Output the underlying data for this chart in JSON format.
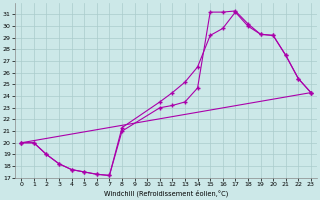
{
  "xlabel": "Windchill (Refroidissement éolien,°C)",
  "bg_color": "#cce8e8",
  "grid_color": "#aacccc",
  "line_color": "#aa00aa",
  "xlim": [
    -0.5,
    23.5
  ],
  "ylim": [
    17,
    32
  ],
  "yticks": [
    17,
    18,
    19,
    20,
    21,
    22,
    23,
    24,
    25,
    26,
    27,
    28,
    29,
    30,
    31
  ],
  "xticks": [
    0,
    1,
    2,
    3,
    4,
    5,
    6,
    7,
    8,
    9,
    10,
    11,
    12,
    13,
    14,
    15,
    16,
    17,
    18,
    19,
    20,
    21,
    22,
    23
  ],
  "series1_x": [
    0,
    1,
    2,
    3,
    4,
    5,
    6,
    7,
    8,
    11,
    12,
    13,
    14,
    15,
    16,
    17,
    18,
    19,
    20,
    21,
    22,
    23
  ],
  "series1_y": [
    20,
    20,
    19,
    18.2,
    17.7,
    17.5,
    17.3,
    17.2,
    21,
    23,
    23.2,
    23.5,
    24.7,
    31.2,
    31.2,
    31.3,
    30.2,
    29.3,
    29.2,
    27.5,
    25.5,
    24.3
  ],
  "series2_x": [
    0,
    1,
    2,
    3,
    4,
    5,
    6,
    7,
    8,
    11,
    12,
    13,
    14,
    15,
    16,
    17,
    18,
    19,
    20,
    21,
    22,
    23
  ],
  "series2_y": [
    20,
    20,
    19,
    18.2,
    17.7,
    17.5,
    17.3,
    17.2,
    21.3,
    23.5,
    24.3,
    25.2,
    26.5,
    29.2,
    29.8,
    31.2,
    30.0,
    29.3,
    29.2,
    27.5,
    25.5,
    24.3
  ],
  "series3_x": [
    0,
    23
  ],
  "series3_y": [
    20,
    24.3
  ]
}
